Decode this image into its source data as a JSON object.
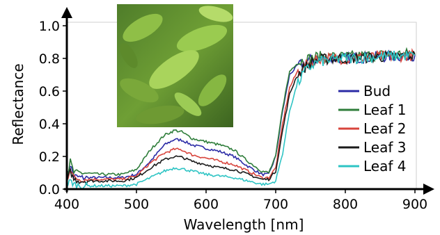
{
  "chart_data": {
    "type": "line",
    "xlabel": "Wavelength [nm]",
    "ylabel": "Reflectance",
    "xlim": [
      400,
      910
    ],
    "ylim": [
      0.0,
      1.0
    ],
    "xticks": [
      "400",
      "500",
      "600",
      "700",
      "800",
      "900"
    ],
    "yticks": [
      "0.0",
      "0.2",
      "0.4",
      "0.6",
      "0.8",
      "1.0"
    ],
    "grid": false,
    "legend_position": "right",
    "inset_image": "leaf-photo",
    "series": [
      {
        "name": "Bud",
        "color": "#2b2ba6",
        "x": [
          400,
          405,
          410,
          420,
          450,
          480,
          500,
          520,
          540,
          555,
          565,
          580,
          600,
          620,
          640,
          660,
          680,
          690,
          700,
          710,
          720,
          730,
          740,
          750,
          760,
          780,
          800,
          850,
          900
        ],
        "y": [
          0.06,
          0.15,
          0.08,
          0.07,
          0.07,
          0.07,
          0.09,
          0.17,
          0.27,
          0.305,
          0.3,
          0.27,
          0.25,
          0.23,
          0.2,
          0.14,
          0.09,
          0.09,
          0.2,
          0.48,
          0.7,
          0.75,
          0.77,
          0.79,
          0.8,
          0.8,
          0.8,
          0.81,
          0.82
        ]
      },
      {
        "name": "Leaf 1",
        "color": "#2e7d3a",
        "x": [
          400,
          405,
          410,
          420,
          450,
          480,
          500,
          520,
          540,
          555,
          565,
          580,
          600,
          620,
          640,
          660,
          680,
          690,
          700,
          710,
          720,
          730,
          740,
          750,
          760,
          780,
          800,
          850,
          900
        ],
        "y": [
          0.07,
          0.17,
          0.1,
          0.1,
          0.09,
          0.09,
          0.12,
          0.24,
          0.33,
          0.36,
          0.35,
          0.31,
          0.29,
          0.27,
          0.24,
          0.17,
          0.11,
          0.1,
          0.2,
          0.5,
          0.72,
          0.77,
          0.79,
          0.8,
          0.81,
          0.81,
          0.81,
          0.82,
          0.83
        ]
      },
      {
        "name": "Leaf 2",
        "color": "#d8443c",
        "x": [
          400,
          405,
          410,
          420,
          450,
          480,
          500,
          520,
          540,
          555,
          565,
          580,
          600,
          620,
          640,
          660,
          680,
          690,
          700,
          710,
          720,
          730,
          740,
          750,
          760,
          780,
          800,
          850,
          900
        ],
        "y": [
          0.05,
          0.13,
          0.07,
          0.06,
          0.06,
          0.06,
          0.08,
          0.16,
          0.22,
          0.245,
          0.24,
          0.21,
          0.19,
          0.17,
          0.15,
          0.11,
          0.07,
          0.07,
          0.13,
          0.4,
          0.62,
          0.71,
          0.75,
          0.77,
          0.8,
          0.8,
          0.8,
          0.81,
          0.82
        ]
      },
      {
        "name": "Leaf 3",
        "color": "#1a1a1a",
        "x": [
          400,
          405,
          410,
          420,
          450,
          480,
          500,
          520,
          540,
          555,
          565,
          580,
          600,
          620,
          640,
          660,
          680,
          690,
          700,
          710,
          720,
          730,
          740,
          750,
          760,
          780,
          800,
          850,
          900
        ],
        "y": [
          0.04,
          0.11,
          0.06,
          0.05,
          0.05,
          0.05,
          0.07,
          0.13,
          0.18,
          0.2,
          0.195,
          0.17,
          0.15,
          0.13,
          0.12,
          0.09,
          0.06,
          0.06,
          0.11,
          0.36,
          0.58,
          0.69,
          0.74,
          0.77,
          0.79,
          0.8,
          0.8,
          0.81,
          0.82
        ]
      },
      {
        "name": "Leaf 4",
        "color": "#2ec4c4",
        "x": [
          400,
          405,
          410,
          420,
          450,
          480,
          500,
          520,
          540,
          555,
          565,
          580,
          600,
          620,
          640,
          660,
          680,
          690,
          700,
          710,
          720,
          730,
          740,
          750,
          760,
          780,
          800,
          850,
          900
        ],
        "y": [
          0.02,
          0.05,
          0.03,
          0.02,
          0.02,
          0.02,
          0.03,
          0.07,
          0.11,
          0.13,
          0.125,
          0.11,
          0.09,
          0.08,
          0.07,
          0.05,
          0.03,
          0.03,
          0.05,
          0.22,
          0.48,
          0.63,
          0.71,
          0.75,
          0.78,
          0.79,
          0.8,
          0.81,
          0.82
        ]
      }
    ]
  }
}
